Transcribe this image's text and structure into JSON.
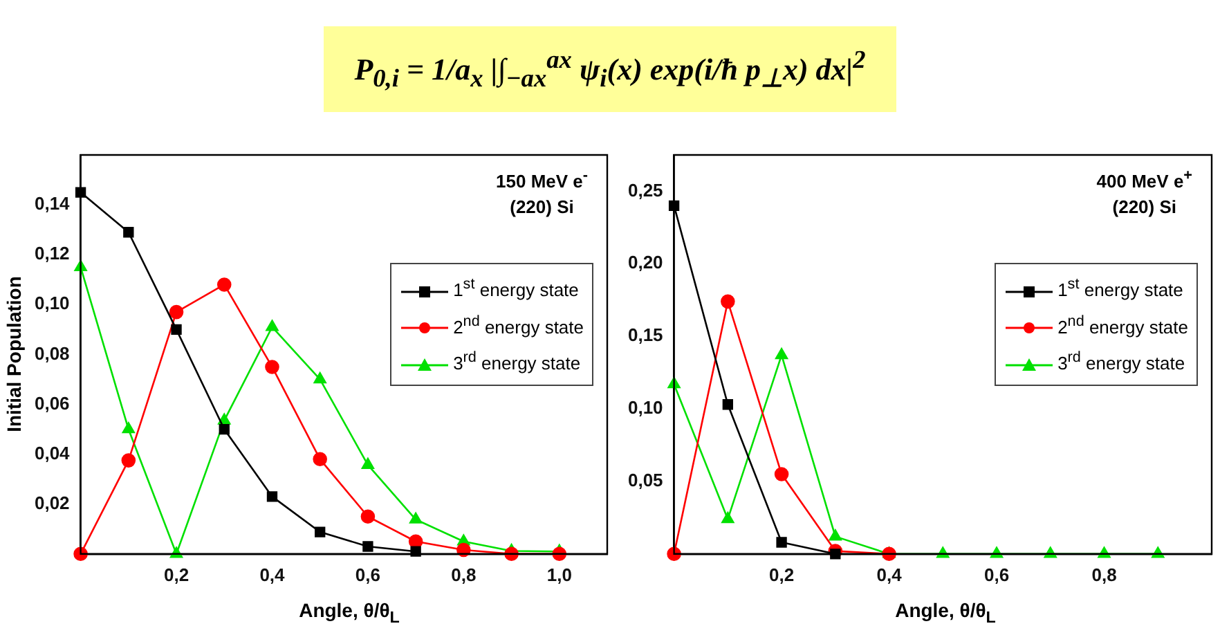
{
  "chart_data": [
    {
      "type": "line",
      "title": "P$_{0,i}$ = 1/a$_{x}$ |∫$_{−ax}$$^{ax}$ ψ$_{i}$(x) exp(i/ħ p$_{⊥}$x) dx|$^{2}$",
      "xlabel": "Angle, θ/θ$_{L}$",
      "ylabel": "Initial Population",
      "annotations": [
        "150 MeV e$^{-}$",
        "(220) Si"
      ],
      "xlim": [
        0,
        1.1
      ],
      "ylim": [
        0,
        0.16
      ],
      "xticks": [
        {
          "value": 0.2,
          "label": "0,2"
        },
        {
          "value": 0.4,
          "label": "0,4"
        },
        {
          "value": 0.6,
          "label": "0,6"
        },
        {
          "value": 0.8,
          "label": "0,8"
        },
        {
          "value": 1.0,
          "label": "1,0"
        }
      ],
      "yticks": [
        {
          "value": 0.02,
          "label": "0,02"
        },
        {
          "value": 0.04,
          "label": "0,04"
        },
        {
          "value": 0.06,
          "label": "0,06"
        },
        {
          "value": 0.08,
          "label": "0,08"
        },
        {
          "value": 0.1,
          "label": "0,10"
        },
        {
          "value": 0.12,
          "label": "0,12"
        },
        {
          "value": 0.14,
          "label": "0,14"
        }
      ],
      "grid": false,
      "legend": "top right",
      "x": [
        0,
        0.1,
        0.2,
        0.3,
        0.4,
        0.5,
        0.6,
        0.7,
        0.8,
        0.9,
        1.0
      ],
      "series": [
        {
          "name": "1$^{st}$ energy state",
          "color": "#000000",
          "marker": "square",
          "values": [
            0.145,
            0.129,
            0.09,
            0.05,
            0.023,
            0.0088,
            0.003,
            0.001,
            null,
            null,
            null
          ]
        },
        {
          "name": "2$^{nd}$ energy state",
          "color": "#ff0000",
          "marker": "circle",
          "values": [
            0,
            0.0375,
            0.097,
            0.108,
            0.075,
            0.038,
            0.015,
            0.005,
            0.0016,
            0,
            0
          ]
        },
        {
          "name": "3$^{rd}$ energy state",
          "color": "#00e000",
          "marker": "triangle",
          "values": [
            0.115,
            0.05,
            0,
            0.0535,
            0.091,
            0.07,
            0.0357,
            0.0138,
            0.005,
            0.0012,
            0.001
          ]
        }
      ]
    },
    {
      "type": "line",
      "xlabel": "Angle, θ/θ$_{L}$",
      "annotations": [
        "400 MeV e$^{+}$",
        "(220) Si"
      ],
      "xlim": [
        0,
        1.0
      ],
      "ylim": [
        0,
        0.275
      ],
      "xticks": [
        {
          "value": 0.2,
          "label": "0,2"
        },
        {
          "value": 0.4,
          "label": "0,4"
        },
        {
          "value": 0.6,
          "label": "0,6"
        },
        {
          "value": 0.8,
          "label": "0,8"
        }
      ],
      "yticks": [
        {
          "value": 0.05,
          "label": "0,05"
        },
        {
          "value": 0.1,
          "label": "0,10"
        },
        {
          "value": 0.15,
          "label": "0,15"
        },
        {
          "value": 0.2,
          "label": "0,20"
        },
        {
          "value": 0.25,
          "label": "0,25"
        }
      ],
      "grid": false,
      "legend": "top right",
      "x": [
        0,
        0.1,
        0.2,
        0.3,
        0.4,
        0.5,
        0.6,
        0.7,
        0.8,
        0.9
      ],
      "series": [
        {
          "name": "1$^{st}$ energy state",
          "color": "#000000",
          "marker": "square",
          "values": [
            0.24,
            0.103,
            0.008,
            0,
            null,
            null,
            null,
            null,
            null,
            null
          ]
        },
        {
          "name": "2$^{nd}$ energy state",
          "color": "#ff0000",
          "marker": "circle",
          "values": [
            0,
            0.174,
            0.055,
            0.002,
            0,
            null,
            null,
            null,
            null,
            null
          ]
        },
        {
          "name": "3$^{rd}$ energy state",
          "color": "#00e000",
          "marker": "triangle",
          "values": [
            0.117,
            0.024,
            0.137,
            0.012,
            0,
            0,
            0,
            0,
            0,
            0
          ]
        }
      ]
    }
  ]
}
